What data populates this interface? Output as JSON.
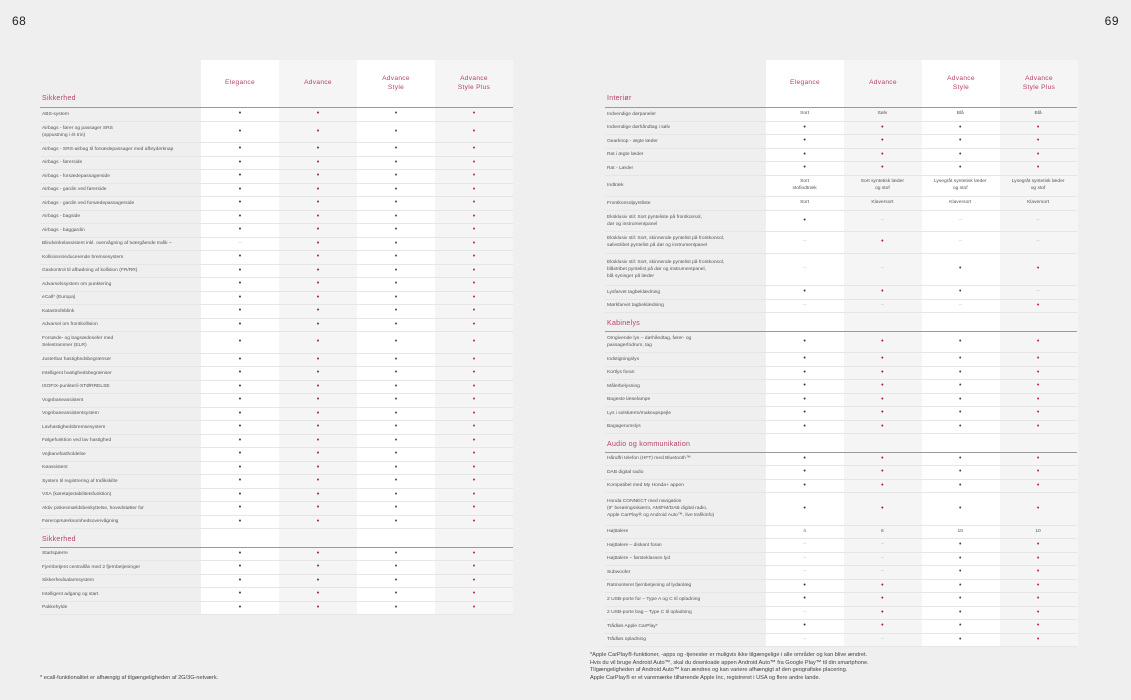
{
  "pages": {
    "left": "68",
    "right": "69"
  },
  "columns": [
    "Elegance",
    "Advance",
    "Advance\nStyle",
    "Advance\nStyle Plus"
  ],
  "colors": {
    "accent": "#b8406a",
    "dot_dark": "#333333",
    "dot_red": "#c0203a"
  },
  "left": {
    "sections": [
      {
        "title": "Sikkerhed",
        "rows": [
          {
            "label": "ABS-system",
            "v": [
              "•",
              "•",
              "•",
              "•"
            ]
          },
          {
            "label": "Airbags - fører og passager SRS\n(oppustning i ét trin)",
            "v": [
              "•",
              "•",
              "•",
              "•"
            ]
          },
          {
            "label": "Airbags - SRS-airbag til forsædepassager med afbryderknap",
            "v": [
              "•",
              "•",
              "•",
              "•"
            ]
          },
          {
            "label": "Airbags - førerside",
            "v": [
              "•",
              "•",
              "•",
              "•"
            ]
          },
          {
            "label": "Airbags - forsædepassagerside",
            "v": [
              "•",
              "•",
              "•",
              "•"
            ]
          },
          {
            "label": "Airbags - gardin ved førerside",
            "v": [
              "•",
              "•",
              "•",
              "•"
            ]
          },
          {
            "label": "Airbags - gardin ved forsædepassagerside",
            "v": [
              "•",
              "•",
              "•",
              "•"
            ]
          },
          {
            "label": "Airbags - bagside",
            "v": [
              "•",
              "•",
              "•",
              "•"
            ]
          },
          {
            "label": "Airbags - baggardin",
            "v": [
              "•",
              "•",
              "•",
              "•"
            ]
          },
          {
            "label": "Blindvinkelassistent inkl. overvågning af tværgående trafik –",
            "v": [
              "–",
              "•",
              "•",
              "•"
            ]
          },
          {
            "label": "Kollisionsreducerende bremsesystem",
            "v": [
              "•",
              "•",
              "•",
              "•"
            ]
          },
          {
            "label": "Gaskontrol til afbødning af kollision (FR/RR)",
            "v": [
              "•",
              "•",
              "•",
              "•"
            ]
          },
          {
            "label": "Advarselssystem om punktering",
            "v": [
              "•",
              "•",
              "•",
              "•"
            ]
          },
          {
            "label": "eCall* (Europa)",
            "v": [
              "•",
              "•",
              "•",
              "•"
            ]
          },
          {
            "label": "Katastrofeblink",
            "v": [
              "•",
              "•",
              "•",
              "•"
            ]
          },
          {
            "label": "Advarsel om frontkollision",
            "v": [
              "•",
              "•",
              "•",
              "•"
            ]
          },
          {
            "label": "Forsæde- og bagsædeseler med\nSelestrammer (ELR)",
            "v": [
              "•",
              "•",
              "•",
              "•"
            ]
          },
          {
            "label": "Justerbar hastighedsbegrænser",
            "v": [
              "•",
              "•",
              "•",
              "•"
            ]
          },
          {
            "label": "Intelligent hastighedsbegrænser",
            "v": [
              "•",
              "•",
              "•",
              "•"
            ]
          },
          {
            "label": "ISOFIX-punkter/i-STØRRELSE",
            "v": [
              "•",
              "•",
              "•",
              "•"
            ]
          },
          {
            "label": "Vognbaneassistent",
            "v": [
              "•",
              "•",
              "•",
              "•"
            ]
          },
          {
            "label": "Vognbaneassistentsystem",
            "v": [
              "•",
              "•",
              "•",
              "•"
            ]
          },
          {
            "label": "Lavhastighedsbremsesystem",
            "v": [
              "•",
              "•",
              "•",
              "•"
            ]
          },
          {
            "label": "Følgefunktion ved lav hastighed",
            "v": [
              "•",
              "•",
              "•",
              "•"
            ]
          },
          {
            "label": "Vejbanefastholdelse",
            "v": [
              "•",
              "•",
              "•",
              "•"
            ]
          },
          {
            "label": "Køassistent",
            "v": [
              "•",
              "•",
              "•",
              "•"
            ]
          },
          {
            "label": "System til registrering af trafikskilte",
            "v": [
              "•",
              "•",
              "•",
              "•"
            ]
          },
          {
            "label": "VSA (køretøjsstabilitetsfunktion)",
            "v": [
              "•",
              "•",
              "•",
              "•"
            ]
          },
          {
            "label": "Aktiv piskesmældsbeskyttelse, hovedstøtter for",
            "v": [
              "•",
              "•",
              "•",
              "•"
            ]
          },
          {
            "label": "Føreropmærksomhedsovervågning",
            "v": [
              "•",
              "•",
              "•",
              "•"
            ]
          }
        ]
      },
      {
        "title": "Sikkerhed",
        "rows": [
          {
            "label": "Startspærre",
            "v": [
              "•",
              "•",
              "•",
              "•"
            ]
          },
          {
            "label": "Fjernbetjent centrallås med 2 fjernbetjeninger",
            "v": [
              "•",
              "•",
              "•",
              "•"
            ]
          },
          {
            "label": "Sikkerhedsalarmsystem",
            "v": [
              "•",
              "•",
              "•",
              "•"
            ]
          },
          {
            "label": "Intelligent adgang og start",
            "v": [
              "•",
              "•",
              "•",
              "•"
            ]
          },
          {
            "label": "Pakkehylde",
            "v": [
              "•",
              "•",
              "•",
              "•"
            ]
          }
        ]
      }
    ],
    "footnote": "* ecall-funktionalitet er afhængig af tilgængeligheden af 2G/3G-netværk."
  },
  "right": {
    "sections": [
      {
        "title": "Interiør",
        "rows": [
          {
            "label": "Indvendige dørpaneler",
            "v": [
              "Sort",
              "Sølv",
              "Blå",
              "Blå"
            ]
          },
          {
            "label": "Indvendige dørhåndtag i sølv",
            "v": [
              "•",
              "•",
              "•",
              "•"
            ]
          },
          {
            "label": "Gearknop - ægte læder",
            "v": [
              "•",
              "•",
              "•",
              "•"
            ]
          },
          {
            "label": "Rat i ægte læder",
            "v": [
              "•",
              "•",
              "•",
              "•"
            ]
          },
          {
            "label": "Rat - Læder",
            "v": [
              "•",
              "•",
              "•",
              "•"
            ]
          },
          {
            "label": "Indtræk",
            "v": [
              "Sort\nstofindtræk",
              "Sort syntetisk læder\nog stof",
              "Lysegråt syntetisk læder\nog stof",
              "Lysegråt syntetisk læder\nog stof"
            ]
          },
          {
            "label": "Frontkonsolpyntliste",
            "v": [
              "Sort",
              "Klaversort",
              "Klaversort",
              "Klaversort"
            ]
          },
          {
            "label": "Eksklusiv stil: Sort pynteliste på frontkonsol,\ndør og instrumentpanel",
            "v": [
              "•",
              "–",
              "–",
              "–"
            ]
          },
          {
            "label": "Eksklusiv stil: Sort, skinnende pyntelist på frontkonsol,\nsølvstribet pyntelist på dør og instrumentpanel",
            "v": [
              "–",
              "•",
              "–",
              "–"
            ]
          },
          {
            "label": "Eksklusiv stil: Sort, skinnende pyntelist på frontkonsol,\nblåstribet pyntelist på dør og instrumentpanel,\nblå syninger på læder",
            "v": [
              "–",
              "–",
              "•",
              "•"
            ]
          },
          {
            "label": "Lysfarvet tagbeklædning",
            "v": [
              "•",
              "•",
              "•",
              "–"
            ]
          },
          {
            "label": "Mørkfarvet tagbeklædning",
            "v": [
              "–",
              "–",
              "–",
              "•"
            ]
          }
        ]
      },
      {
        "title": "Kabinelys",
        "rows": [
          {
            "label": "Omgivende lys – dørhåndtag, fører- og\npassagerfodrum, tag",
            "v": [
              "•",
              "•",
              "•",
              "•"
            ]
          },
          {
            "label": "Indstigningslys",
            "v": [
              "•",
              "•",
              "•",
              "•"
            ]
          },
          {
            "label": "Kortlys foran",
            "v": [
              "•",
              "•",
              "•",
              "•"
            ]
          },
          {
            "label": "Målerbelysning",
            "v": [
              "•",
              "•",
              "•",
              "•"
            ]
          },
          {
            "label": "Bageste læselampe",
            "v": [
              "•",
              "•",
              "•",
              "•"
            ]
          },
          {
            "label": "Lys i solskærm/makeupspejle",
            "v": [
              "•",
              "•",
              "•",
              "•"
            ]
          },
          {
            "label": "Bagagerumslys",
            "v": [
              "•",
              "•",
              "•",
              "•"
            ]
          }
        ]
      },
      {
        "title": "Audio og kommunikation",
        "rows": [
          {
            "label": "Håndfri telefon (HFT) med Bluetooth™",
            "v": [
              "•",
              "•",
              "•",
              "•"
            ]
          },
          {
            "label": "DAB digital radio",
            "v": [
              "•",
              "•",
              "•",
              "•"
            ]
          },
          {
            "label": "Kompatibel med My Honda+ appen",
            "v": [
              "•",
              "•",
              "•",
              "•"
            ]
          },
          {
            "label": "Honda CONNECT med navigation\n(9\" berøringsskærm, AM/FM/DAB digital radio,\nApple CarPlay® og Android Auto™, live trafikinfo)",
            "v": [
              "•",
              "•",
              "•",
              "•"
            ]
          },
          {
            "label": "Højttalere",
            "v": [
              "4",
              "6",
              "10",
              "10"
            ]
          },
          {
            "label": "Højttalere – diskant foran",
            "v": [
              "–",
              "–",
              "•",
              "•"
            ]
          },
          {
            "label": "Højttalere – førsteklasses lyd",
            "v": [
              "–",
              "–",
              "•",
              "•"
            ]
          },
          {
            "label": "Subwoofer",
            "v": [
              "–",
              "–",
              "•",
              "•"
            ]
          },
          {
            "label": "Ratmonteret fjernbetjening af lydanlæg",
            "v": [
              "•",
              "•",
              "•",
              "•"
            ]
          },
          {
            "label": "2 USB-porte for – Type A og C til opladning",
            "v": [
              "•",
              "•",
              "•",
              "•"
            ]
          },
          {
            "label": "2 USB-porte bag – Type C til opladning",
            "v": [
              "–",
              "•",
              "•",
              "•"
            ]
          },
          {
            "label": "Trådløs Apple CarPlay*",
            "v": [
              "•",
              "•",
              "•",
              "•"
            ]
          },
          {
            "label": "Trådløs opladning",
            "v": [
              "–",
              "–",
              "•",
              "•"
            ]
          }
        ]
      }
    ],
    "footnote": "*Apple CarPlay®-funktioner, -apps og -tjenester er muligvis ikke tilgængelige i alle områder og kan blive ændret.\nHvis du vil bruge Android Auto™, skal du downloade appen Android Auto™ fra Google Play™ til din smartphone.\nTilgængeligheden af Android Auto™ kan ændres og kan variere afhængigt af den geografiske placering.\nApple CarPlay® er et varemærke tilhørende Apple Inc, registreret i USA og flere andre lande."
  }
}
